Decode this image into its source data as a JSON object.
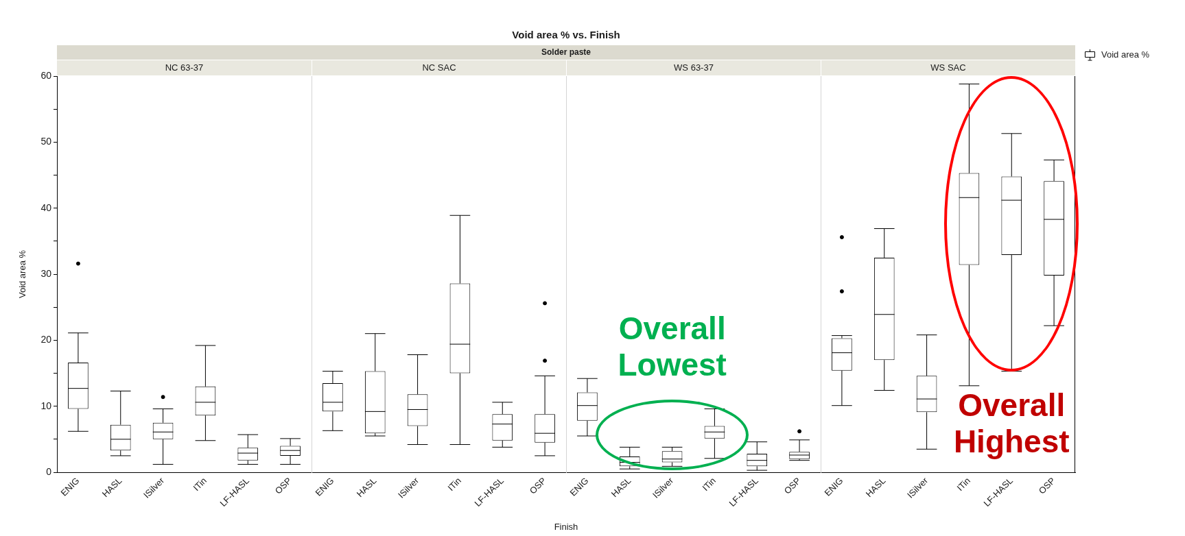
{
  "chart_data": [
    {
      "type": "other",
      "title": "Void area % vs. Finish",
      "subtitle": "Solder paste",
      "xlabel": "Finish"
    },
    {
      "type": "box",
      "subtitle": "NC 63-37",
      "ylabel": "Void area %",
      "categories": [
        "ENIG",
        "HASL",
        "ISilver",
        "ITin",
        "LF-HASL",
        "OSP"
      ],
      "series": [
        {
          "color": "#000000",
          "boxes": [
            {
              "low": 6.2,
              "q1": 9.6,
              "median": 12.7,
              "q3": 16.6,
              "high": 21.1,
              "outliers": [
                31.6
              ]
            },
            {
              "low": 2.5,
              "q1": 3.3,
              "median": 5.0,
              "q3": 7.2,
              "high": 12.3
            },
            {
              "low": 1.2,
              "q1": 5.0,
              "median": 6.1,
              "q3": 7.5,
              "high": 9.6,
              "outliers": [
                11.4
              ]
            },
            {
              "low": 4.8,
              "q1": 8.6,
              "median": 10.6,
              "q3": 13.0,
              "high": 19.2
            },
            {
              "low": 1.2,
              "q1": 1.8,
              "median": 2.9,
              "q3": 3.7,
              "high": 5.7
            },
            {
              "low": 1.2,
              "q1": 2.5,
              "median": 3.3,
              "q3": 4.0,
              "high": 5.1
            }
          ]
        }
      ],
      "ylim": [
        0,
        60
      ],
      "yticks": [
        0,
        {
          "value": 5,
          "label": null
        },
        10,
        {
          "value": 15,
          "label": null
        },
        20,
        {
          "value": 25,
          "label": null
        },
        30,
        {
          "value": 35,
          "label": null
        },
        40,
        {
          "value": 45,
          "label": null
        },
        50,
        {
          "value": 55,
          "label": null
        },
        60
      ]
    },
    {
      "type": "box",
      "subtitle": "NC SAC",
      "categories": [
        "ENIG",
        "HASL",
        "ISilver",
        "ITin",
        "LF-HASL",
        "OSP"
      ],
      "series": [
        {
          "color": "#000000",
          "boxes": [
            {
              "low": 6.3,
              "q1": 9.2,
              "median": 10.6,
              "q3": 13.5,
              "high": 15.3
            },
            {
              "low": 5.5,
              "q1": 5.9,
              "median": 9.2,
              "q3": 15.3,
              "high": 21.0
            },
            {
              "low": 4.2,
              "q1": 7.0,
              "median": 9.5,
              "q3": 11.8,
              "high": 17.8
            },
            {
              "low": 4.2,
              "q1": 15.0,
              "median": 19.4,
              "q3": 28.6,
              "high": 38.9
            },
            {
              "low": 3.8,
              "q1": 4.8,
              "median": 7.3,
              "q3": 8.8,
              "high": 10.6
            },
            {
              "low": 2.5,
              "q1": 4.5,
              "median": 5.9,
              "q3": 8.8,
              "high": 14.6,
              "outliers": [
                16.9,
                25.6
              ]
            }
          ]
        }
      ],
      "ylim": [
        0,
        60
      ],
      "tick_labels": "x"
    },
    {
      "type": "box",
      "subtitle": "WS 63-37",
      "annotations": [
        "Overall Lowest"
      ],
      "categories": [
        "ENIG",
        "HASL",
        "ISilver",
        "ITin",
        "LF-HASL",
        "OSP"
      ],
      "series": [
        {
          "color": "#000000",
          "boxes": [
            {
              "low": 5.5,
              "q1": 7.8,
              "median": 10.1,
              "q3": 12.1,
              "high": 14.2
            },
            {
              "low": 0.5,
              "q1": 0.9,
              "median": 1.5,
              "q3": 2.4,
              "high": 3.8
            },
            {
              "low": 0.9,
              "q1": 1.5,
              "median": 2.0,
              "q3": 3.2,
              "high": 3.8
            },
            {
              "low": 2.1,
              "q1": 5.1,
              "median": 6.1,
              "q3": 7.0,
              "high": 9.6
            },
            {
              "low": 0.3,
              "q1": 0.9,
              "median": 1.8,
              "q3": 2.8,
              "high": 4.6
            },
            {
              "low": 1.8,
              "q1": 2.0,
              "median": 2.6,
              "q3": 3.1,
              "high": 4.9,
              "outliers": [
                6.2
              ]
            }
          ]
        }
      ],
      "ylim": [
        0,
        60
      ],
      "tick_labels": "x"
    },
    {
      "type": "box",
      "subtitle": "WS SAC",
      "annotations": [
        "Overall Highest"
      ],
      "legend": "top right",
      "categories": [
        "ENIG",
        "HASL",
        "ISilver",
        "ITin",
        "LF-HASL",
        "OSP"
      ],
      "series": [
        {
          "name": "Void area %",
          "color": "#000000",
          "boxes": [
            {
              "low": 10.1,
              "q1": 15.4,
              "median": 18.1,
              "q3": 20.3,
              "high": 20.7,
              "outliers": [
                27.4,
                35.6
              ]
            },
            {
              "low": 12.4,
              "q1": 17.0,
              "median": 23.9,
              "q3": 32.5,
              "high": 36.9
            },
            {
              "low": 3.5,
              "q1": 9.1,
              "median": 11.1,
              "q3": 14.6,
              "high": 20.8
            },
            {
              "low": 13.1,
              "q1": 31.4,
              "median": 41.6,
              "q3": 45.3,
              "high": 58.8
            },
            {
              "low": 15.3,
              "q1": 32.9,
              "median": 41.2,
              "q3": 44.8,
              "high": 51.3
            },
            {
              "low": 22.2,
              "q1": 29.8,
              "median": 38.3,
              "q3": 44.1,
              "high": 47.3
            }
          ]
        }
      ],
      "ylim": [
        0,
        60
      ],
      "tick_labels": "x"
    }
  ]
}
